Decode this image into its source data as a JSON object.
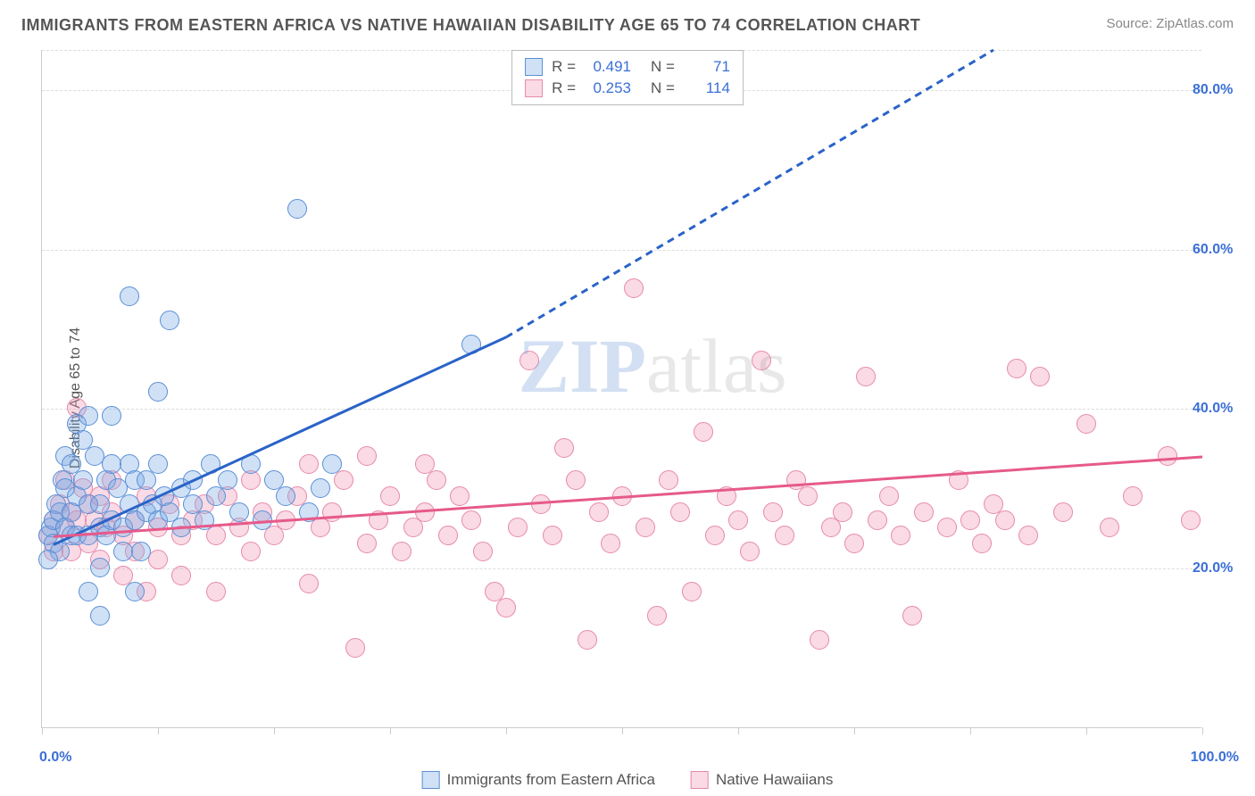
{
  "title": "IMMIGRANTS FROM EASTERN AFRICA VS NATIVE HAWAIIAN DISABILITY AGE 65 TO 74 CORRELATION CHART",
  "source_label": "Source: ZipAtlas.com",
  "ylabel": "Disability Age 65 to 74",
  "watermark": {
    "part1": "ZIP",
    "part2": "atlas"
  },
  "chart": {
    "type": "scatter",
    "xlim": [
      0,
      100
    ],
    "ylim": [
      0,
      85
    ],
    "xticks": [
      0,
      10,
      20,
      30,
      40,
      50,
      60,
      70,
      80,
      90,
      100
    ],
    "yticks": [
      20,
      40,
      60,
      80
    ],
    "ytick_labels": [
      "20.0%",
      "40.0%",
      "60.0%",
      "80.0%"
    ],
    "xtick_label_left": "0.0%",
    "xtick_label_right": "100.0%",
    "grid_color": "#dddddd",
    "axis_color": "#cccccc",
    "background_color": "#ffffff",
    "marker_radius": 11,
    "tick_font_color": "#3b6fd6",
    "series": [
      {
        "name": "Immigrants from Eastern Africa",
        "legend_label": "Immigrants from Eastern Africa",
        "R": "0.491",
        "N": "71",
        "marker_fill": "rgba(120,170,230,0.35)",
        "marker_stroke": "#5a8fd6",
        "line_color": "#2a63c8",
        "line_width": 3,
        "trend": {
          "x1": 1,
          "y1": 23,
          "x2": 40,
          "y2": 49,
          "dashed_to_x": 82,
          "dashed_to_y": 85
        },
        "points": [
          [
            0.5,
            24
          ],
          [
            0.8,
            25
          ],
          [
            1,
            26
          ],
          [
            1,
            23
          ],
          [
            1.2,
            28
          ],
          [
            1.5,
            27
          ],
          [
            1.5,
            22
          ],
          [
            1.8,
            31
          ],
          [
            2,
            30
          ],
          [
            2,
            25
          ],
          [
            2,
            34
          ],
          [
            2.5,
            33
          ],
          [
            2.5,
            27
          ],
          [
            2.5,
            24
          ],
          [
            3,
            38
          ],
          [
            3,
            29
          ],
          [
            3,
            24
          ],
          [
            3.5,
            36
          ],
          [
            3.5,
            31
          ],
          [
            4,
            39
          ],
          [
            4,
            28
          ],
          [
            4,
            24
          ],
          [
            4,
            17
          ],
          [
            4.5,
            34
          ],
          [
            5,
            28
          ],
          [
            5,
            20
          ],
          [
            5,
            25
          ],
          [
            5,
            14
          ],
          [
            5.5,
            31
          ],
          [
            5.5,
            24
          ],
          [
            6,
            26
          ],
          [
            6,
            33
          ],
          [
            6,
            39
          ],
          [
            6.5,
            30
          ],
          [
            7,
            25
          ],
          [
            7,
            22
          ],
          [
            7.5,
            54
          ],
          [
            7.5,
            33
          ],
          [
            7.5,
            28
          ],
          [
            8,
            31
          ],
          [
            8,
            26
          ],
          [
            8,
            17
          ],
          [
            8.5,
            22
          ],
          [
            9,
            27
          ],
          [
            9,
            31
          ],
          [
            9.5,
            28
          ],
          [
            10,
            42
          ],
          [
            10,
            33
          ],
          [
            10,
            26
          ],
          [
            10.5,
            29
          ],
          [
            11,
            27
          ],
          [
            11,
            51
          ],
          [
            12,
            30
          ],
          [
            12,
            25
          ],
          [
            13,
            28
          ],
          [
            13,
            31
          ],
          [
            14,
            26
          ],
          [
            14.5,
            33
          ],
          [
            15,
            29
          ],
          [
            16,
            31
          ],
          [
            17,
            27
          ],
          [
            18,
            33
          ],
          [
            19,
            26
          ],
          [
            20,
            31
          ],
          [
            21,
            29
          ],
          [
            22,
            65
          ],
          [
            23,
            27
          ],
          [
            24,
            30
          ],
          [
            25,
            33
          ],
          [
            37,
            48
          ],
          [
            0.5,
            21
          ]
        ]
      },
      {
        "name": "Native Hawaiians",
        "legend_label": "Native Hawaiians",
        "R": "0.253",
        "N": "114",
        "marker_fill": "rgba(240,150,180,0.35)",
        "marker_stroke": "#e68aa8",
        "line_color": "#e65a8a",
        "line_width": 3,
        "trend": {
          "x1": 1,
          "y1": 24,
          "x2": 100,
          "y2": 34
        },
        "points": [
          [
            0.5,
            24
          ],
          [
            1,
            26
          ],
          [
            1,
            22
          ],
          [
            1.5,
            28
          ],
          [
            2,
            25
          ],
          [
            2,
            31
          ],
          [
            2.5,
            27
          ],
          [
            2.5,
            22
          ],
          [
            3,
            26
          ],
          [
            3,
            40
          ],
          [
            3.5,
            30
          ],
          [
            4,
            28
          ],
          [
            4,
            23
          ],
          [
            4.5,
            26
          ],
          [
            5,
            29
          ],
          [
            5,
            21
          ],
          [
            5.5,
            25
          ],
          [
            6,
            27
          ],
          [
            6,
            31
          ],
          [
            7,
            24
          ],
          [
            7,
            19
          ],
          [
            8,
            26
          ],
          [
            8,
            22
          ],
          [
            9,
            29
          ],
          [
            9,
            17
          ],
          [
            10,
            25
          ],
          [
            10,
            21
          ],
          [
            11,
            28
          ],
          [
            12,
            24
          ],
          [
            12,
            19
          ],
          [
            13,
            26
          ],
          [
            14,
            28
          ],
          [
            15,
            24
          ],
          [
            15,
            17
          ],
          [
            16,
            29
          ],
          [
            17,
            25
          ],
          [
            18,
            22
          ],
          [
            18,
            31
          ],
          [
            19,
            27
          ],
          [
            20,
            24
          ],
          [
            21,
            26
          ],
          [
            22,
            29
          ],
          [
            23,
            18
          ],
          [
            23,
            33
          ],
          [
            24,
            25
          ],
          [
            25,
            27
          ],
          [
            26,
            31
          ],
          [
            27,
            10
          ],
          [
            28,
            23
          ],
          [
            28,
            34
          ],
          [
            29,
            26
          ],
          [
            30,
            29
          ],
          [
            31,
            22
          ],
          [
            32,
            25
          ],
          [
            33,
            27
          ],
          [
            33,
            33
          ],
          [
            34,
            31
          ],
          [
            35,
            24
          ],
          [
            36,
            29
          ],
          [
            37,
            26
          ],
          [
            38,
            22
          ],
          [
            39,
            17
          ],
          [
            40,
            15
          ],
          [
            41,
            25
          ],
          [
            42,
            46
          ],
          [
            43,
            28
          ],
          [
            44,
            24
          ],
          [
            45,
            35
          ],
          [
            46,
            31
          ],
          [
            47,
            11
          ],
          [
            48,
            27
          ],
          [
            49,
            23
          ],
          [
            50,
            29
          ],
          [
            51,
            55
          ],
          [
            52,
            25
          ],
          [
            53,
            14
          ],
          [
            54,
            31
          ],
          [
            55,
            27
          ],
          [
            56,
            17
          ],
          [
            57,
            37
          ],
          [
            58,
            24
          ],
          [
            59,
            29
          ],
          [
            60,
            26
          ],
          [
            61,
            22
          ],
          [
            62,
            46
          ],
          [
            63,
            27
          ],
          [
            64,
            24
          ],
          [
            65,
            31
          ],
          [
            66,
            29
          ],
          [
            67,
            11
          ],
          [
            68,
            25
          ],
          [
            69,
            27
          ],
          [
            70,
            23
          ],
          [
            71,
            44
          ],
          [
            72,
            26
          ],
          [
            73,
            29
          ],
          [
            74,
            24
          ],
          [
            75,
            14
          ],
          [
            76,
            27
          ],
          [
            78,
            25
          ],
          [
            79,
            31
          ],
          [
            80,
            26
          ],
          [
            81,
            23
          ],
          [
            82,
            28
          ],
          [
            83,
            26
          ],
          [
            84,
            45
          ],
          [
            85,
            24
          ],
          [
            86,
            44
          ],
          [
            88,
            27
          ],
          [
            90,
            38
          ],
          [
            92,
            25
          ],
          [
            94,
            29
          ],
          [
            97,
            34
          ],
          [
            99,
            26
          ]
        ]
      }
    ]
  },
  "legend_top": {
    "r_label": "R =",
    "n_label": "N ="
  }
}
